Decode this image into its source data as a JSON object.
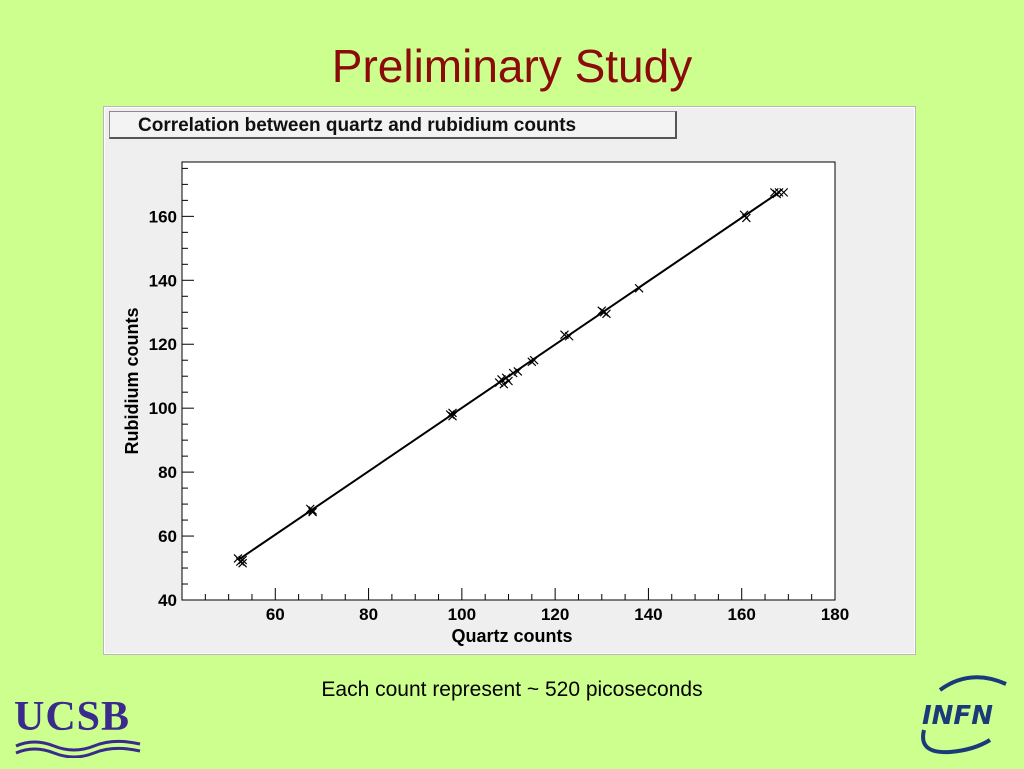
{
  "slide": {
    "title": "Preliminary Study",
    "caption": "Each count represent ~ 520 picoseconds"
  },
  "logos": {
    "left": "UCSB",
    "right": "INFN"
  },
  "colors": {
    "background": "#ccff8e",
    "title": "#8b0a0a",
    "plot_background": "#efefef",
    "ucsb": "#3a2a8c",
    "infn": "#1a3a7a"
  },
  "chart_data": {
    "type": "scatter",
    "title": "Correlation between quartz and rubidium counts",
    "xlabel": "Quartz counts",
    "ylabel": "Rubidium counts",
    "xlim": [
      40,
      180
    ],
    "ylim": [
      40,
      177
    ],
    "x_ticks": [
      60,
      80,
      100,
      120,
      140,
      160,
      180
    ],
    "y_ticks": [
      40,
      60,
      80,
      100,
      120,
      140,
      160
    ],
    "marker": "cross",
    "grid": false,
    "fit_line": {
      "x": [
        52,
        168
      ],
      "y": [
        52.5,
        167.5
      ]
    },
    "points": [
      {
        "x": 52,
        "y": 53
      },
      {
        "x": 52.5,
        "y": 52
      },
      {
        "x": 53,
        "y": 52.5
      },
      {
        "x": 53,
        "y": 51.5
      },
      {
        "x": 67.5,
        "y": 68.5
      },
      {
        "x": 68,
        "y": 67.5
      },
      {
        "x": 68,
        "y": 68
      },
      {
        "x": 97.5,
        "y": 98
      },
      {
        "x": 98,
        "y": 97.5
      },
      {
        "x": 98,
        "y": 98.5
      },
      {
        "x": 108,
        "y": 108
      },
      {
        "x": 108.5,
        "y": 109
      },
      {
        "x": 109,
        "y": 107.5
      },
      {
        "x": 109.5,
        "y": 109.5
      },
      {
        "x": 110,
        "y": 108.5
      },
      {
        "x": 111,
        "y": 111
      },
      {
        "x": 112,
        "y": 111.5
      },
      {
        "x": 115,
        "y": 114.5
      },
      {
        "x": 115.5,
        "y": 115
      },
      {
        "x": 122,
        "y": 123
      },
      {
        "x": 123,
        "y": 122.5
      },
      {
        "x": 130,
        "y": 130.5
      },
      {
        "x": 130.5,
        "y": 130
      },
      {
        "x": 131,
        "y": 129.5
      },
      {
        "x": 138,
        "y": 137.5
      },
      {
        "x": 160.5,
        "y": 160.5
      },
      {
        "x": 161,
        "y": 159.5
      },
      {
        "x": 167,
        "y": 167.5
      },
      {
        "x": 167.5,
        "y": 167
      },
      {
        "x": 168,
        "y": 167.5
      },
      {
        "x": 169,
        "y": 167.5
      }
    ]
  }
}
